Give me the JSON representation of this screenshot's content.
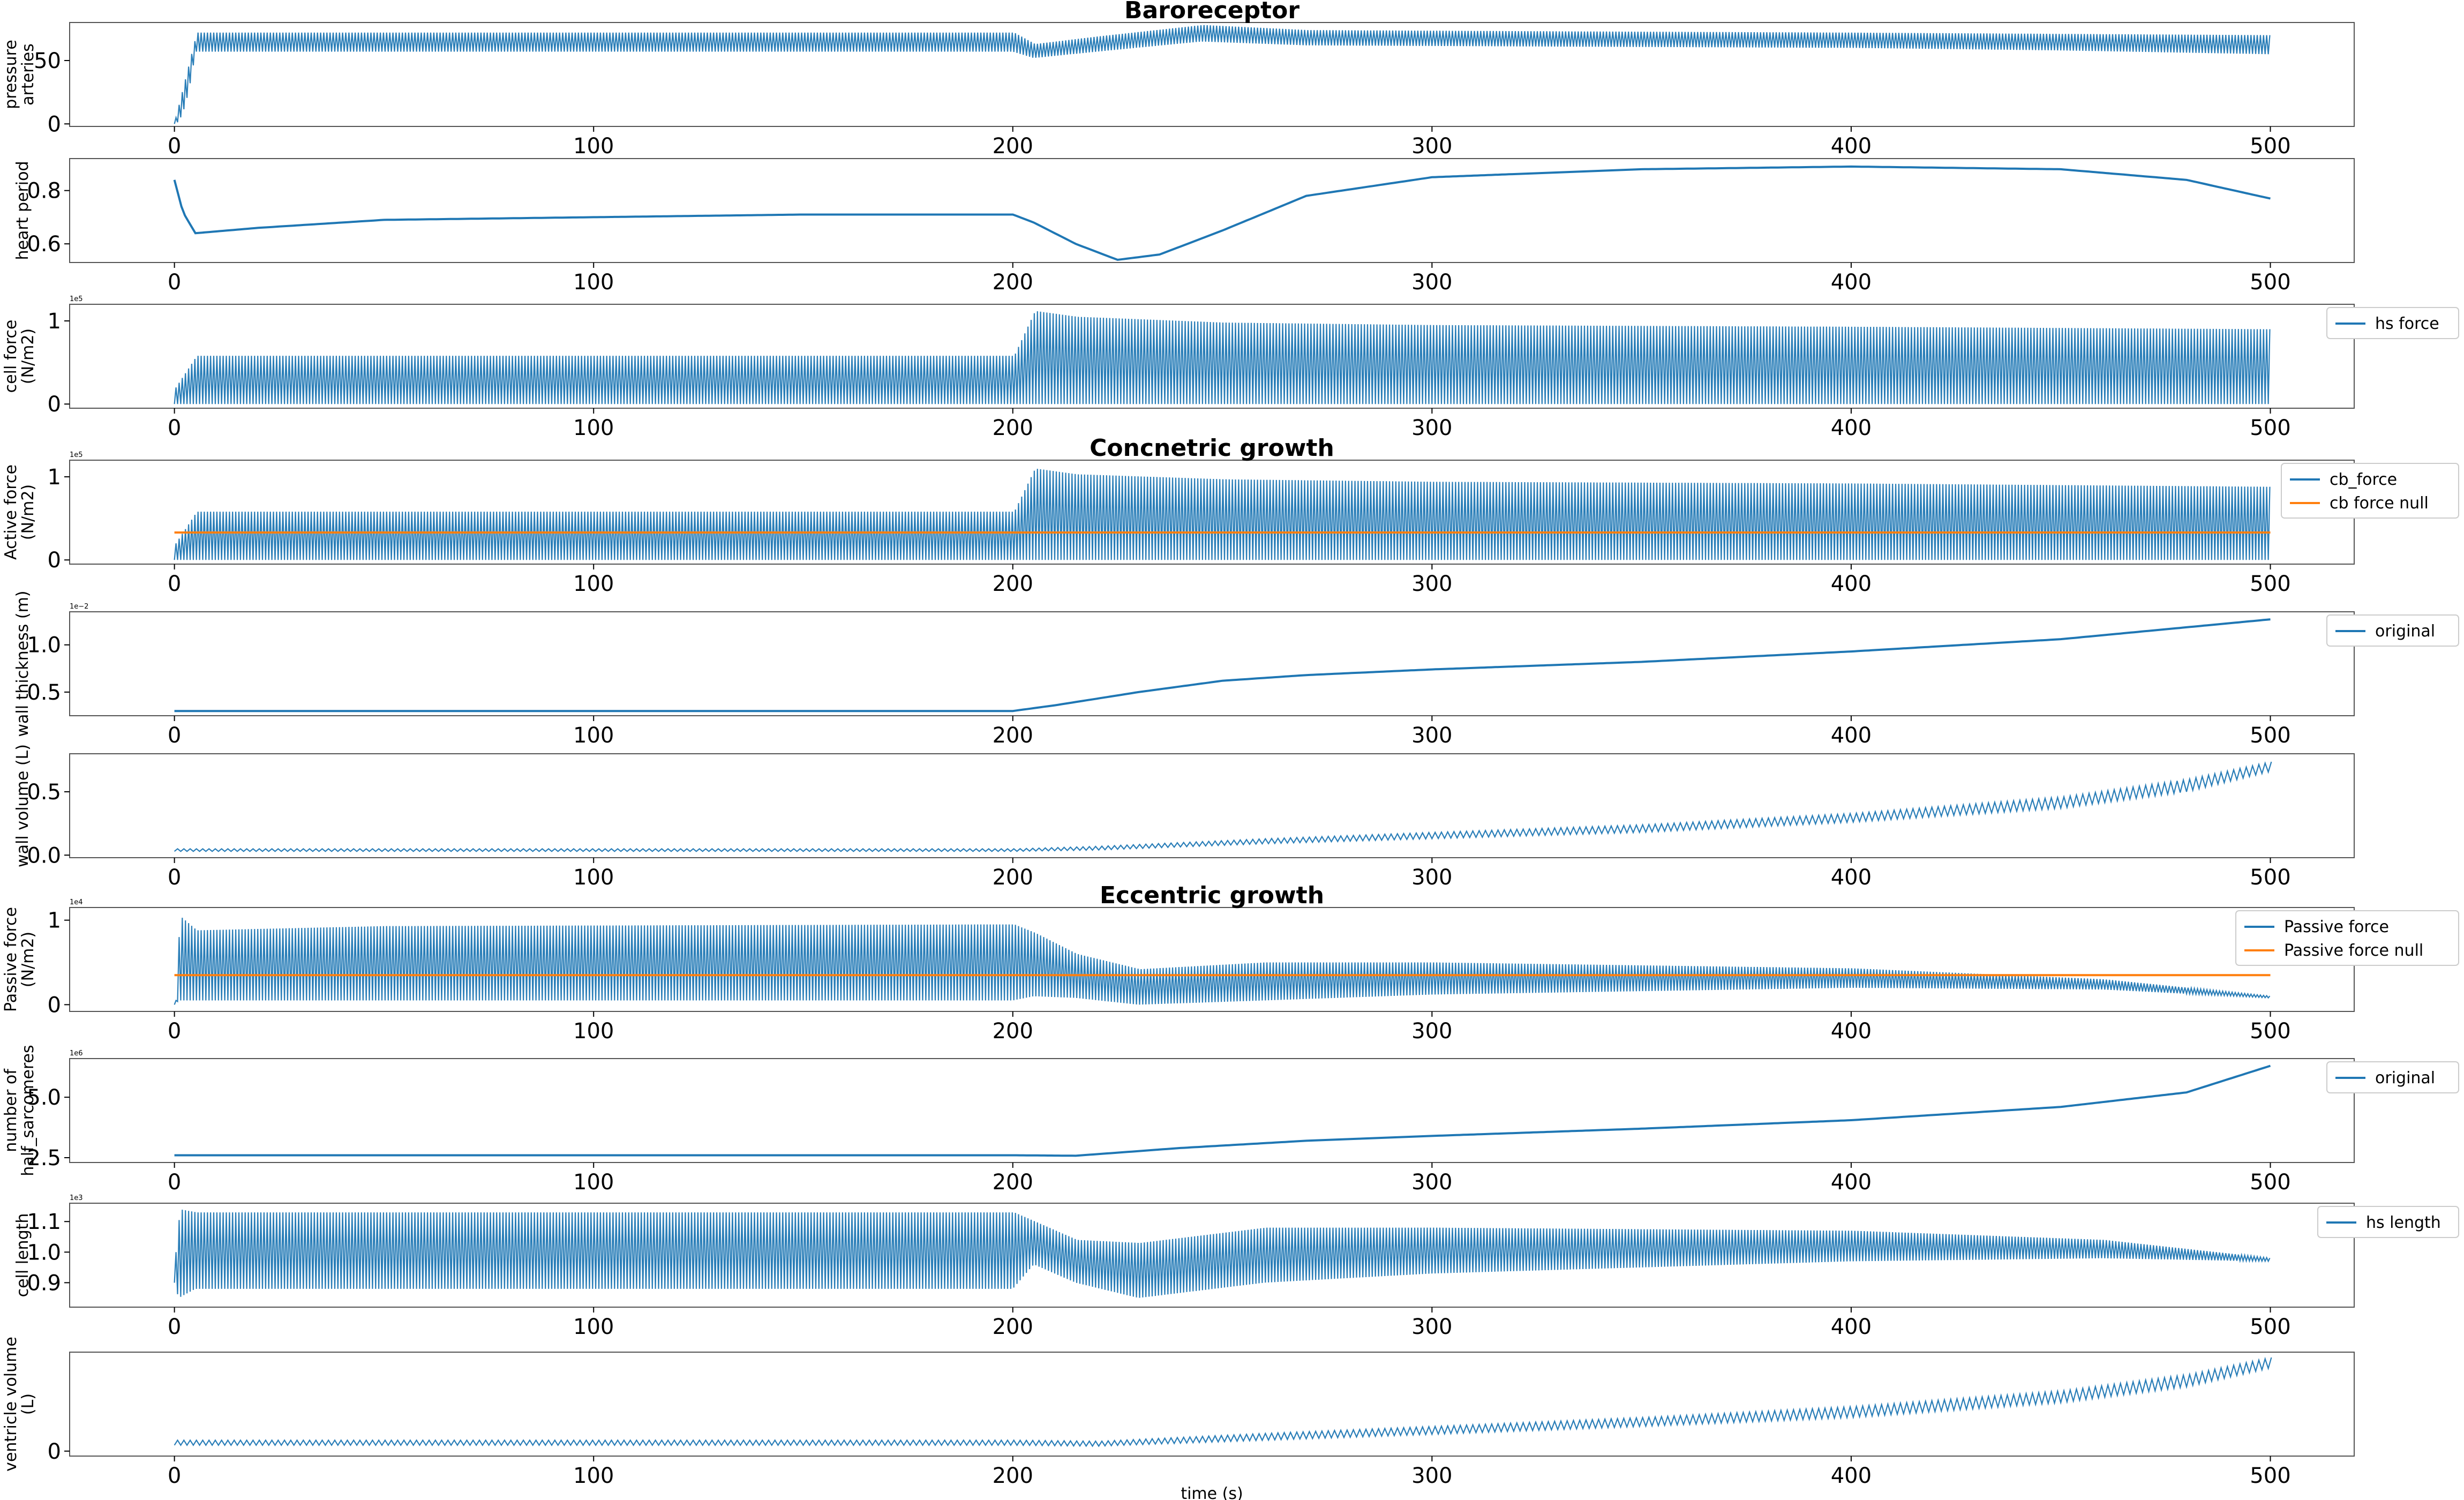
{
  "chart_data": [
    {
      "type": "line",
      "id": "p1",
      "section_title": "Baroreceptor",
      "ylabel": [
        "pressure",
        "arteries"
      ],
      "ylim": [
        -2,
        80
      ],
      "yticks": [
        0,
        50
      ],
      "ytick_labels": [
        "0",
        "50"
      ],
      "xlim": [
        -25,
        520
      ],
      "xticks": [
        0,
        100,
        200,
        300,
        400,
        500
      ],
      "xtick_labels": [
        "0",
        "100",
        "200",
        "300",
        "400",
        "500"
      ],
      "exponent": "",
      "legend": [],
      "series": [
        {
          "name": "pressure arteries",
          "color": "#1f77b4",
          "style": "oscillating",
          "rise_to": 0.5,
          "x": [
            0,
            5,
            200,
            205,
            220,
            245,
            270,
            330,
            400,
            450,
            500
          ],
          "upper": [
            5,
            72,
            72,
            63,
            69,
            78,
            74,
            73,
            72,
            71,
            70
          ],
          "lower": [
            0,
            57,
            57,
            52,
            57,
            65,
            62,
            61,
            60,
            58,
            55
          ]
        }
      ]
    },
    {
      "type": "line",
      "id": "p2",
      "section_title": "",
      "ylabel": [
        "heart period"
      ],
      "ylim": [
        0.53,
        0.92
      ],
      "yticks": [
        0.6,
        0.8
      ],
      "ytick_labels": [
        "0.6",
        "0.8"
      ],
      "xlim": [
        -25,
        520
      ],
      "xticks": [
        0,
        100,
        200,
        300,
        400,
        500
      ],
      "xtick_labels": [
        "0",
        "100",
        "200",
        "300",
        "400",
        "500"
      ],
      "exponent": "",
      "legend": [],
      "series": [
        {
          "name": "heart period",
          "color": "#1f77b4",
          "style": "line",
          "x": [
            0,
            2,
            5,
            20,
            50,
            100,
            150,
            190,
            200,
            205,
            215,
            225,
            235,
            250,
            270,
            300,
            350,
            400,
            450,
            480,
            500
          ],
          "y": [
            0.84,
            0.72,
            0.64,
            0.66,
            0.69,
            0.7,
            0.71,
            0.71,
            0.71,
            0.68,
            0.6,
            0.54,
            0.56,
            0.65,
            0.78,
            0.85,
            0.88,
            0.89,
            0.88,
            0.84,
            0.77
          ]
        }
      ]
    },
    {
      "type": "line",
      "id": "p3",
      "section_title": "",
      "ylabel": [
        "cell force",
        "(N/m2)"
      ],
      "ylim": [
        -0.05,
        1.2
      ],
      "yticks": [
        0,
        1
      ],
      "ytick_labels": [
        "0",
        "1"
      ],
      "xlim": [
        -25,
        520
      ],
      "xticks": [
        0,
        100,
        200,
        300,
        400,
        500
      ],
      "xtick_labels": [
        "0",
        "100",
        "200",
        "300",
        "400",
        "500"
      ],
      "exponent": "1e5",
      "legend": [
        {
          "label": "hs force",
          "color": "#1f77b4"
        }
      ],
      "series": [
        {
          "name": "hs force",
          "color": "#1f77b4",
          "style": "oscillating",
          "x": [
            0,
            5,
            200,
            205,
            215,
            250,
            300,
            400,
            500
          ],
          "upper": [
            0.2,
            0.58,
            0.58,
            1.12,
            1.05,
            0.98,
            0.95,
            0.93,
            0.9
          ],
          "lower": [
            0,
            0,
            0,
            0,
            0,
            0,
            0,
            0,
            0
          ]
        }
      ]
    },
    {
      "type": "line",
      "id": "p4",
      "section_title": "Concnetric growth",
      "ylabel": [
        "Active force",
        "(N/m2)"
      ],
      "ylim": [
        -0.05,
        1.2
      ],
      "yticks": [
        0,
        1
      ],
      "ytick_labels": [
        "0",
        "1"
      ],
      "xlim": [
        -25,
        520
      ],
      "xticks": [
        0,
        100,
        200,
        300,
        400,
        500
      ],
      "xtick_labels": [
        "0",
        "100",
        "200",
        "300",
        "400",
        "500"
      ],
      "exponent": "1e5",
      "legend": [
        {
          "label": "cb_force",
          "color": "#1f77b4"
        },
        {
          "label": "cb force null",
          "color": "#ff7f0e"
        }
      ],
      "series": [
        {
          "name": "cb_force",
          "color": "#1f77b4",
          "style": "oscillating",
          "x": [
            0,
            5,
            200,
            205,
            215,
            250,
            300,
            400,
            500
          ],
          "upper": [
            0.2,
            0.58,
            0.58,
            1.1,
            1.03,
            0.97,
            0.94,
            0.92,
            0.88
          ],
          "lower": [
            0,
            0,
            0,
            0,
            0,
            0,
            0,
            0,
            0
          ]
        },
        {
          "name": "cb force null",
          "color": "#ff7f0e",
          "style": "line",
          "x": [
            0,
            500
          ],
          "y": [
            0.33,
            0.33
          ]
        }
      ]
    },
    {
      "type": "line",
      "id": "p5",
      "section_title": "",
      "ylabel": [
        "wall thickness (m)"
      ],
      "ylim": [
        0.25,
        1.35
      ],
      "yticks": [
        0.5,
        1.0
      ],
      "ytick_labels": [
        "0.5",
        "1.0"
      ],
      "xlim": [
        -25,
        520
      ],
      "xticks": [
        0,
        100,
        200,
        300,
        400,
        500
      ],
      "xtick_labels": [
        "0",
        "100",
        "200",
        "300",
        "400",
        "500"
      ],
      "exponent": "1e−2",
      "legend": [
        {
          "label": "original",
          "color": "#1f77b4"
        }
      ],
      "series": [
        {
          "name": "original",
          "color": "#1f77b4",
          "style": "line",
          "x": [
            0,
            200,
            210,
            230,
            250,
            270,
            300,
            350,
            400,
            450,
            500
          ],
          "y": [
            0.3,
            0.3,
            0.36,
            0.5,
            0.62,
            0.68,
            0.74,
            0.82,
            0.93,
            1.06,
            1.27
          ]
        }
      ]
    },
    {
      "type": "line",
      "id": "p6",
      "section_title": "",
      "ylabel": [
        "wall volume (L)"
      ],
      "ylim": [
        -0.02,
        0.8
      ],
      "yticks": [
        0.0,
        0.5
      ],
      "ytick_labels": [
        "0.0",
        "0.5"
      ],
      "xlim": [
        -25,
        520
      ],
      "xticks": [
        0,
        100,
        200,
        300,
        400,
        500
      ],
      "xtick_labels": [
        "0",
        "100",
        "200",
        "300",
        "400",
        "500"
      ],
      "exponent": "",
      "legend": [],
      "series": [
        {
          "name": "wall volume",
          "color": "#1f77b4",
          "style": "band",
          "x": [
            0,
            200,
            220,
            260,
            300,
            350,
            400,
            450,
            480,
            500
          ],
          "upper": [
            0.05,
            0.05,
            0.07,
            0.13,
            0.18,
            0.24,
            0.33,
            0.46,
            0.6,
            0.74
          ],
          "lower": [
            0.03,
            0.03,
            0.04,
            0.09,
            0.13,
            0.18,
            0.26,
            0.37,
            0.5,
            0.66
          ]
        }
      ]
    },
    {
      "type": "line",
      "id": "p7",
      "section_title": "Eccentric growth",
      "ylabel": [
        "Passive force",
        "(N/m2)"
      ],
      "ylim": [
        -0.08,
        1.15
      ],
      "yticks": [
        0,
        1
      ],
      "ytick_labels": [
        "0",
        "1"
      ],
      "xlim": [
        -25,
        520
      ],
      "xticks": [
        0,
        100,
        200,
        300,
        400,
        500
      ],
      "xtick_labels": [
        "0",
        "100",
        "200",
        "300",
        "400",
        "500"
      ],
      "exponent": "1e4",
      "legend": [
        {
          "label": "Passive force",
          "color": "#1f77b4"
        },
        {
          "label": "Passive force null",
          "color": "#ff7f0e"
        }
      ],
      "series": [
        {
          "name": "Passive force",
          "color": "#1f77b4",
          "style": "oscillating",
          "x": [
            0,
            1,
            5,
            50,
            200,
            205,
            215,
            230,
            260,
            300,
            400,
            460,
            500
          ],
          "upper": [
            0.05,
            1.05,
            0.88,
            0.93,
            0.95,
            0.85,
            0.6,
            0.42,
            0.5,
            0.5,
            0.43,
            0.3,
            0.1
          ],
          "lower": [
            0,
            0.05,
            0.05,
            0.05,
            0.05,
            0.1,
            0.08,
            0.0,
            0.05,
            0.12,
            0.2,
            0.18,
            0.08
          ]
        },
        {
          "name": "Passive force null",
          "color": "#ff7f0e",
          "style": "line",
          "x": [
            0,
            500
          ],
          "y": [
            0.35,
            0.35
          ]
        }
      ]
    },
    {
      "type": "line",
      "id": "p8",
      "section_title": "",
      "ylabel": [
        "number of",
        "half_sarcomeres"
      ],
      "ylim": [
        2.3,
        6.6
      ],
      "yticks": [
        2.5,
        5.0
      ],
      "ytick_labels": [
        "2.5",
        "5.0"
      ],
      "xlim": [
        -25,
        520
      ],
      "xticks": [
        0,
        100,
        200,
        300,
        400,
        500
      ],
      "xtick_labels": [
        "0",
        "100",
        "200",
        "300",
        "400",
        "500"
      ],
      "exponent": "1e6",
      "legend": [
        {
          "label": "original",
          "color": "#1f77b4"
        }
      ],
      "series": [
        {
          "name": "original",
          "color": "#1f77b4",
          "style": "line",
          "x": [
            0,
            200,
            215,
            240,
            270,
            300,
            350,
            400,
            450,
            480,
            500
          ],
          "y": [
            2.6,
            2.6,
            2.58,
            2.9,
            3.2,
            3.4,
            3.7,
            4.05,
            4.6,
            5.2,
            6.3
          ]
        }
      ]
    },
    {
      "type": "line",
      "id": "p9",
      "section_title": "",
      "ylabel": [
        "cell length"
      ],
      "ylim": [
        0.82,
        1.16
      ],
      "yticks": [
        0.9,
        1.0,
        1.1
      ],
      "ytick_labels": [
        "0.9",
        "1.0",
        "1.1"
      ],
      "xlim": [
        -25,
        520
      ],
      "xticks": [
        0,
        100,
        200,
        300,
        400,
        500
      ],
      "xtick_labels": [
        "0",
        "100",
        "200",
        "300",
        "400",
        "500"
      ],
      "exponent": "1e3",
      "legend": [
        {
          "label": "hs length",
          "color": "#1f77b4"
        }
      ],
      "series": [
        {
          "name": "hs length",
          "color": "#1f77b4",
          "style": "oscillating",
          "x": [
            0,
            1,
            5,
            200,
            205,
            215,
            230,
            260,
            300,
            400,
            460,
            500
          ],
          "upper": [
            1.0,
            1.14,
            1.13,
            1.13,
            1.1,
            1.04,
            1.03,
            1.08,
            1.08,
            1.07,
            1.04,
            0.98
          ],
          "lower": [
            0.9,
            0.85,
            0.88,
            0.88,
            0.96,
            0.9,
            0.85,
            0.9,
            0.93,
            0.97,
            0.98,
            0.97
          ]
        }
      ]
    },
    {
      "type": "line",
      "id": "p10",
      "section_title": "",
      "ylabel": [
        "ventricle volume",
        "(L)"
      ],
      "ylim": [
        -0.1,
        2.0
      ],
      "yticks": [
        0
      ],
      "ytick_labels": [
        "0"
      ],
      "xlim": [
        -25,
        520
      ],
      "xticks": [
        0,
        100,
        200,
        300,
        400,
        500
      ],
      "xtick_labels": [
        "0",
        "100",
        "200",
        "300",
        "400",
        "500"
      ],
      "exponent": "",
      "xlabel": "time (s)",
      "legend": [],
      "series": [
        {
          "name": "ventricle volume",
          "color": "#1f77b4",
          "style": "band",
          "x": [
            0,
            200,
            220,
            260,
            300,
            350,
            400,
            450,
            480,
            500
          ],
          "upper": [
            0.22,
            0.22,
            0.2,
            0.36,
            0.5,
            0.68,
            0.9,
            1.22,
            1.55,
            1.9
          ],
          "lower": [
            0.12,
            0.12,
            0.1,
            0.22,
            0.34,
            0.5,
            0.68,
            0.98,
            1.3,
            1.68
          ]
        }
      ]
    }
  ]
}
